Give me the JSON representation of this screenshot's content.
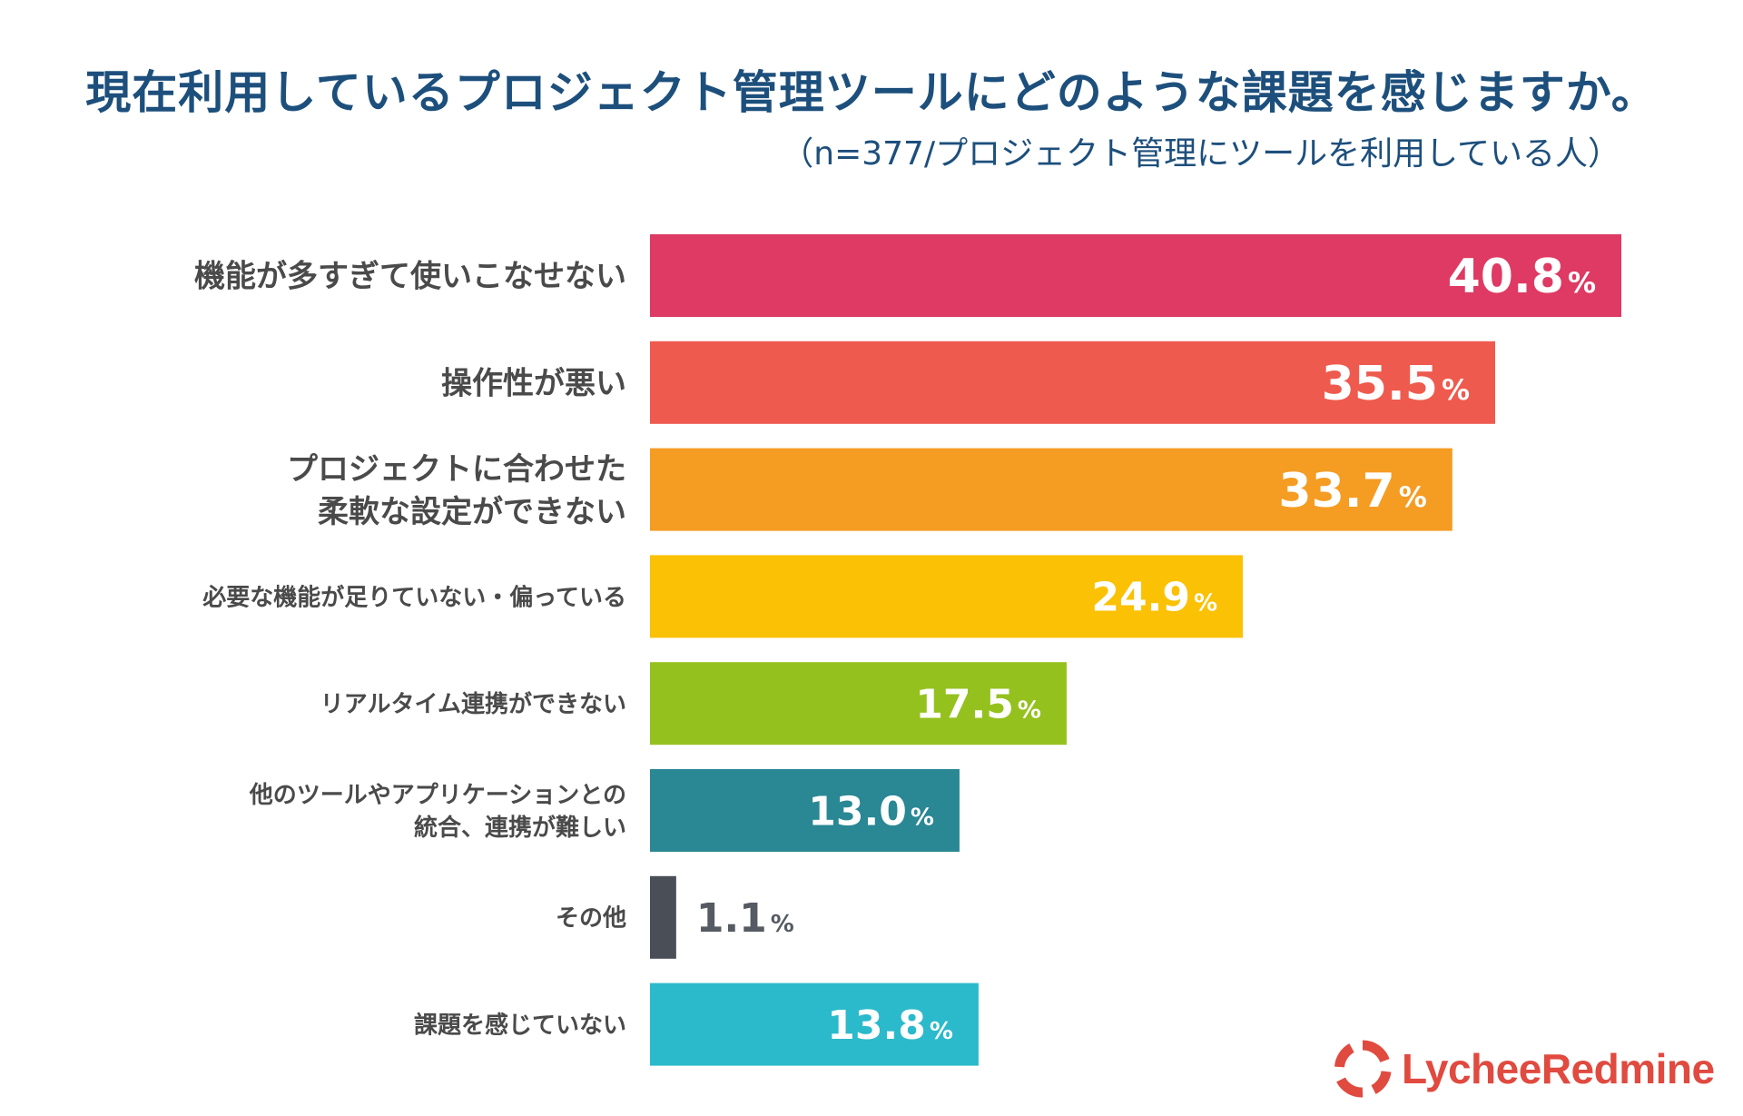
{
  "chart_data": {
    "type": "bar",
    "orientation": "horizontal",
    "title": "現在利用しているプロジェクト管理ツールにどのような課題を感じますか。",
    "subtitle": "（n=377/プロジェクト管理にツールを利用している人）",
    "unit": "%",
    "xlim": [
      0,
      40.8
    ],
    "grid": false,
    "categories": [
      [
        "機能が多すぎて使いこなせない"
      ],
      [
        "操作性が悪い"
      ],
      [
        "プロジェクトに合わせた",
        "柔軟な設定ができない"
      ],
      [
        "必要な機能が足りていない・偏っている"
      ],
      [
        "リアルタイム連携ができない"
      ],
      [
        "他のツールやアプリケーションとの",
        "統合、連携が難しい"
      ],
      [
        "その他"
      ],
      [
        "課題を感じていない"
      ]
    ],
    "values": [
      40.8,
      35.5,
      33.7,
      24.9,
      17.5,
      13.0,
      1.1,
      13.8
    ],
    "value_labels": [
      "40.8",
      "35.5",
      "33.7",
      "24.9",
      "17.5",
      "13.0",
      "1.1",
      "13.8"
    ],
    "colors": [
      "#de3a63",
      "#ef5a4e",
      "#f59c22",
      "#fbc104",
      "#95c11f",
      "#2a8794",
      "#4a4e57",
      "#2bbacb"
    ]
  },
  "logo": {
    "text": "LycheeRedmine",
    "color": "#e04a3f",
    "icon": "lychee-ring-icon"
  }
}
